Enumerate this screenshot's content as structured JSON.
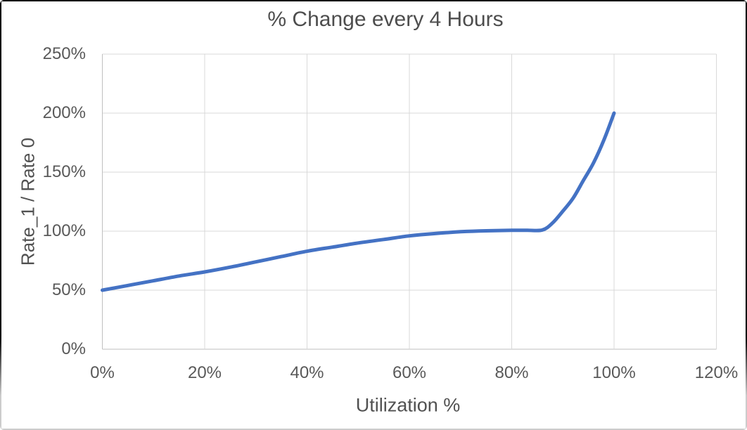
{
  "frame": {
    "background": "#ffffff",
    "border_top_color": "#000000",
    "border_bottom_color": "#cccccc"
  },
  "chart_data": {
    "type": "line",
    "title": "% Change every 4 Hours",
    "xlabel": "Utilization %",
    "ylabel": "Rate_1 / Rate 0",
    "xlim": [
      0,
      120
    ],
    "ylim": [
      0,
      250
    ],
    "x_ticks": [
      {
        "value": 0,
        "label": "0%"
      },
      {
        "value": 20,
        "label": "20%"
      },
      {
        "value": 40,
        "label": "40%"
      },
      {
        "value": 60,
        "label": "60%"
      },
      {
        "value": 80,
        "label": "80%"
      },
      {
        "value": 100,
        "label": "100%"
      },
      {
        "value": 120,
        "label": "120%"
      }
    ],
    "y_ticks": [
      {
        "value": 0,
        "label": "0%"
      },
      {
        "value": 50,
        "label": "50%"
      },
      {
        "value": 100,
        "label": "100%"
      },
      {
        "value": 150,
        "label": "150%"
      },
      {
        "value": 200,
        "label": "200%"
      },
      {
        "value": 250,
        "label": "250%"
      }
    ],
    "grid": true,
    "legend": false,
    "colors": {
      "gridline": "#d9d9d9",
      "axis_line": "#bfbfbf",
      "series_blue": "#4472C4"
    },
    "series": [
      {
        "name": "Rate_1 / Rate 0",
        "color": "#4472C4",
        "smoothed": true,
        "x": [
          0,
          5,
          10,
          15,
          20,
          25,
          30,
          35,
          40,
          45,
          50,
          55,
          60,
          65,
          70,
          75,
          80,
          83,
          86,
          88,
          90,
          92,
          94,
          96,
          98,
          100
        ],
        "y": [
          50,
          54,
          58,
          62,
          65.5,
          69.5,
          74,
          78.5,
          83,
          86.5,
          90,
          93,
          96,
          98,
          99.5,
          100.3,
          100.7,
          100.8,
          101,
          107,
          117,
          128,
          143,
          158,
          177,
          200
        ]
      }
    ]
  }
}
